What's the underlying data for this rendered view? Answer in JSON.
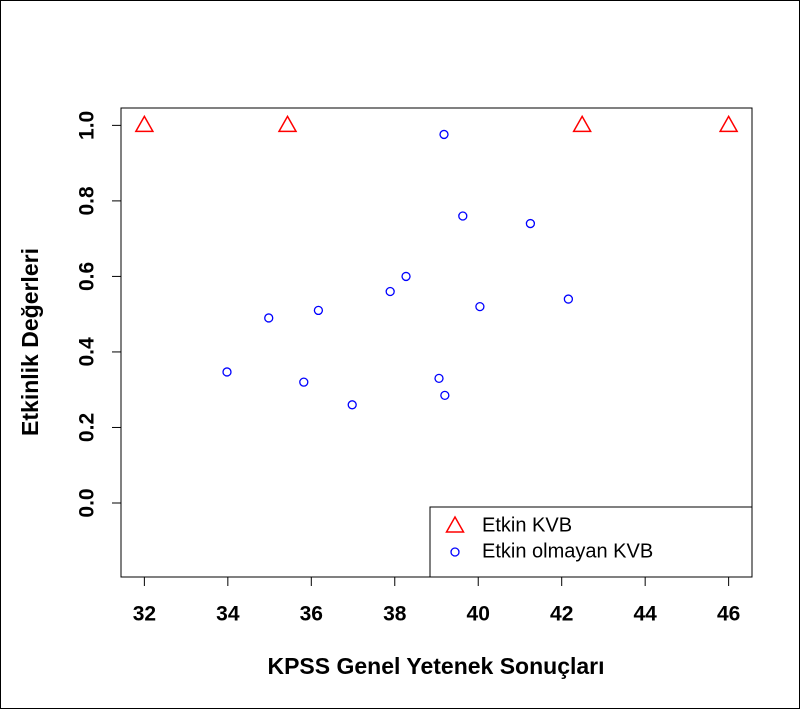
{
  "chart_data": {
    "type": "scatter",
    "xlabel": "KPSS Genel Yetenek Sonuçları",
    "ylabel": "Etkinlik Değerleri",
    "xlim": [
      31.44,
      46.56
    ],
    "xticks": [
      32,
      34,
      36,
      38,
      40,
      42,
      44,
      46
    ],
    "ylim": [
      -0.196,
      1.046
    ],
    "yticks": [
      {
        "value": 0,
        "label": "0.0"
      },
      0.2,
      0.4,
      0.6,
      0.8,
      {
        "value": 1,
        "label": "1.0"
      }
    ],
    "legend": "bottom-right",
    "series": [
      {
        "name": "Etkin KVB",
        "color": "#ff0000",
        "marker": "triangle",
        "x": [
          32.0,
          35.43,
          42.49,
          46.0
        ],
        "values": [
          1,
          1,
          1,
          1
        ]
      },
      {
        "name": "Etkin olmayan KVB",
        "color": "#0000ff",
        "marker": "circle",
        "x": [
          33.98,
          34.98,
          35.82,
          36.17,
          36.98,
          37.89,
          38.27,
          39.18,
          39.06,
          39.2,
          39.63,
          40.04,
          41.25,
          42.16
        ],
        "values": [
          0.347,
          0.49,
          0.32,
          0.51,
          0.26,
          0.56,
          0.6,
          0.976,
          0.33,
          0.285,
          0.76,
          0.52,
          0.74,
          0.54
        ]
      }
    ]
  }
}
